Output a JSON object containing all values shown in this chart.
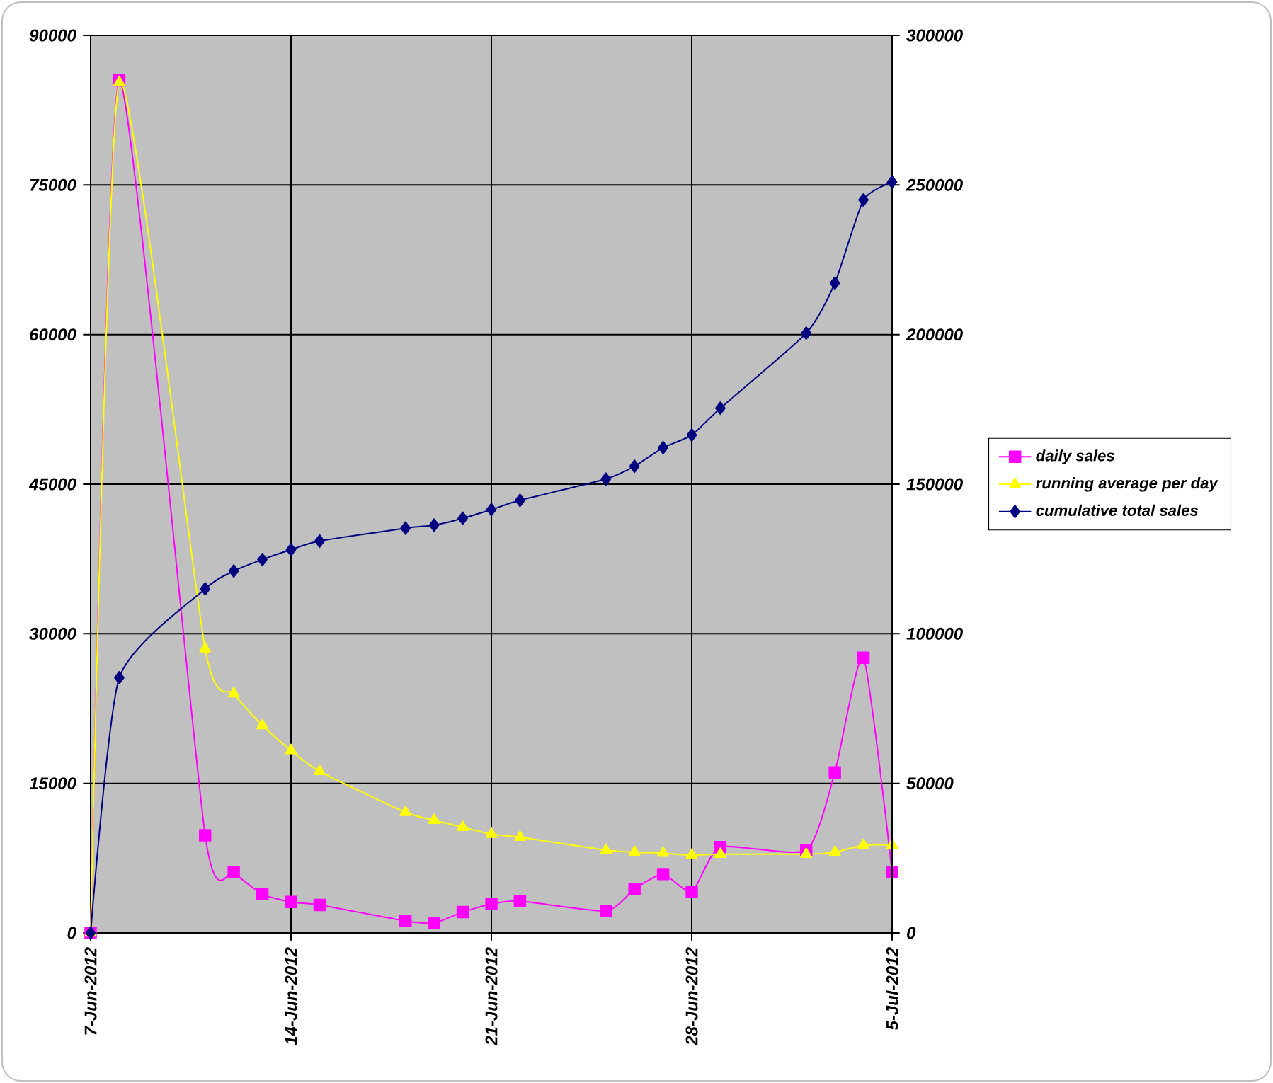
{
  "chart_data": {
    "type": "line",
    "x": [
      "2012-06-07",
      "2012-06-08",
      "2012-06-11",
      "2012-06-12",
      "2012-06-13",
      "2012-06-14",
      "2012-06-15",
      "2012-06-18",
      "2012-06-19",
      "2012-06-20",
      "2012-06-21",
      "2012-06-22",
      "2012-06-25",
      "2012-06-26",
      "2012-06-27",
      "2012-06-28",
      "2012-06-29",
      "2012-07-02",
      "2012-07-03",
      "2012-07-04",
      "2012-07-05"
    ],
    "series": [
      {
        "name": "daily sales",
        "color": "#ff00ff",
        "marker": "square",
        "values": [
          0,
          85500,
          9800,
          6100,
          3900,
          3100,
          2800,
          1200,
          1000,
          2100,
          2900,
          3200,
          2200,
          4400,
          5900,
          4100,
          8600,
          8300,
          16100,
          27600,
          6100
        ]
      },
      {
        "name": "running average per day",
        "color": "#ffff00",
        "marker": "triangle",
        "values": [
          0,
          85300,
          28500,
          24000,
          20800,
          18300,
          16200,
          12100,
          11300,
          10600,
          9900,
          9600,
          8300,
          8100,
          8000,
          7800,
          7900,
          7900,
          8100,
          8800,
          8800
        ]
      },
      {
        "name": "cumulative total sales",
        "color": "#000080",
        "marker": "diamond",
        "axis": "y2",
        "values": [
          0,
          85300,
          115000,
          121000,
          124800,
          128100,
          131000,
          135300,
          136300,
          138600,
          141500,
          144600,
          151700,
          156000,
          162200,
          166400,
          175400,
          200500,
          217200,
          245000,
          251000
        ]
      }
    ],
    "xlim": [
      "2012-06-07",
      "2012-07-05"
    ],
    "xticks": [
      {
        "value": "2012-06-07",
        "label": "7-Jun-2012"
      },
      {
        "value": "2012-06-14",
        "label": "14-Jun-2012"
      },
      {
        "value": "2012-06-21",
        "label": "21-Jun-2012"
      },
      {
        "value": "2012-06-28",
        "label": "28-Jun-2012"
      },
      {
        "value": "2012-07-05",
        "label": "5-Jul-2012"
      }
    ],
    "ylim": [
      0,
      90000
    ],
    "yticks": [
      0,
      15000,
      30000,
      45000,
      60000,
      75000,
      90000
    ],
    "y2lim": [
      0,
      300000
    ],
    "y2ticks": [
      0,
      50000,
      100000,
      150000,
      200000,
      250000,
      300000
    ],
    "grid": true,
    "legend": "right"
  }
}
